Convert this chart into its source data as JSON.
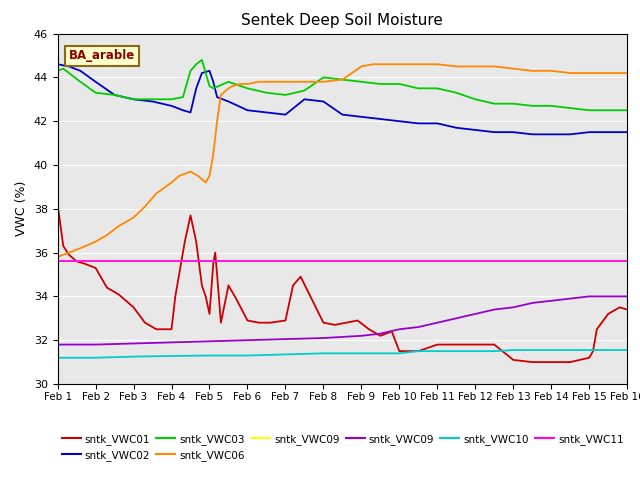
{
  "title": "Sentek Deep Soil Moisture",
  "ylabel": "VWC (%)",
  "annotation": "BA_arable",
  "xlim": [
    0,
    15
  ],
  "ylim": [
    30,
    46
  ],
  "yticks": [
    30,
    32,
    34,
    36,
    38,
    40,
    42,
    44,
    46
  ],
  "xtick_labels": [
    "Feb 1",
    "Feb 2",
    "Feb 3",
    "Feb 4",
    "Feb 5",
    "Feb 6",
    "Feb 7",
    "Feb 8",
    "Feb 9",
    "Feb 10",
    "Feb 11",
    "Feb 12",
    "Feb 13",
    "Feb 14",
    "Feb 15",
    "Feb 16"
  ],
  "bg_color": "#e8e8e8",
  "series": {
    "sntk_VWC01": {
      "color": "#cc0000",
      "label": "sntk_VWC01",
      "x": [
        0,
        0.15,
        0.3,
        0.5,
        0.7,
        1.0,
        1.3,
        1.6,
        2.0,
        2.3,
        2.6,
        3.0,
        3.1,
        3.2,
        3.35,
        3.5,
        3.65,
        3.8,
        3.9,
        4.0,
        4.1,
        4.15,
        4.2,
        4.3,
        4.5,
        4.7,
        5.0,
        5.3,
        5.6,
        6.0,
        6.2,
        6.4,
        6.6,
        6.8,
        7.0,
        7.3,
        7.6,
        7.9,
        8.2,
        8.5,
        8.8,
        9.0,
        9.5,
        10.0,
        10.5,
        11.0,
        11.5,
        12.0,
        12.5,
        13.0,
        13.5,
        14.0,
        14.1,
        14.2,
        14.5,
        14.8,
        15.0
      ],
      "y": [
        38.2,
        36.3,
        35.9,
        35.6,
        35.5,
        35.3,
        34.4,
        34.1,
        33.5,
        32.8,
        32.5,
        32.5,
        34.0,
        35.0,
        36.5,
        37.7,
        36.5,
        34.5,
        34.0,
        33.2,
        35.5,
        36.0,
        35.0,
        32.8,
        34.5,
        33.9,
        32.9,
        32.8,
        32.8,
        32.9,
        34.5,
        34.9,
        34.2,
        33.5,
        32.8,
        32.7,
        32.8,
        32.9,
        32.5,
        32.2,
        32.4,
        31.5,
        31.5,
        31.8,
        31.8,
        31.8,
        31.8,
        31.1,
        31.0,
        31.0,
        31.0,
        31.2,
        31.5,
        32.5,
        33.2,
        33.5,
        33.4
      ]
    },
    "sntk_VWC02": {
      "color": "#0000cc",
      "label": "sntk_VWC02",
      "x": [
        0,
        0.3,
        0.6,
        1.0,
        1.5,
        2.0,
        2.5,
        3.0,
        3.3,
        3.5,
        3.65,
        3.8,
        4.0,
        4.1,
        4.2,
        4.5,
        5.0,
        5.5,
        6.0,
        6.5,
        7.0,
        7.5,
        8.0,
        8.5,
        9.0,
        9.5,
        10.0,
        10.5,
        11.0,
        11.5,
        12.0,
        12.5,
        13.0,
        13.5,
        14.0,
        14.5,
        15.0
      ],
      "y": [
        44.6,
        44.5,
        44.3,
        43.8,
        43.2,
        43.0,
        42.9,
        42.7,
        42.5,
        42.4,
        43.5,
        44.2,
        44.3,
        43.8,
        43.1,
        42.9,
        42.5,
        42.4,
        42.3,
        43.0,
        42.9,
        42.3,
        42.2,
        42.1,
        42.0,
        41.9,
        41.9,
        41.7,
        41.6,
        41.5,
        41.5,
        41.4,
        41.4,
        41.4,
        41.5,
        41.5,
        41.5
      ]
    },
    "sntk_VWC03": {
      "color": "#00cc00",
      "label": "sntk_VWC03",
      "x": [
        0,
        0.15,
        0.3,
        0.6,
        1.0,
        1.5,
        2.0,
        2.5,
        3.0,
        3.3,
        3.5,
        3.65,
        3.8,
        4.0,
        4.1,
        4.5,
        5.0,
        5.5,
        6.0,
        6.5,
        7.0,
        7.5,
        8.0,
        8.5,
        9.0,
        9.5,
        10.0,
        10.5,
        11.0,
        11.5,
        12.0,
        12.5,
        13.0,
        13.5,
        14.0,
        14.5,
        15.0
      ],
      "y": [
        44.3,
        44.4,
        44.2,
        43.8,
        43.3,
        43.2,
        43.0,
        43.0,
        43.0,
        43.1,
        44.3,
        44.6,
        44.8,
        43.6,
        43.5,
        43.8,
        43.5,
        43.3,
        43.2,
        43.4,
        44.0,
        43.9,
        43.8,
        43.7,
        43.7,
        43.5,
        43.5,
        43.3,
        43.0,
        42.8,
        42.8,
        42.7,
        42.7,
        42.6,
        42.5,
        42.5,
        42.5
      ]
    },
    "sntk_VWC06": {
      "color": "#ff8800",
      "label": "sntk_VWC06",
      "x": [
        0,
        0.3,
        0.6,
        1.0,
        1.3,
        1.6,
        2.0,
        2.3,
        2.6,
        3.0,
        3.2,
        3.5,
        3.7,
        3.9,
        4.0,
        4.1,
        4.2,
        4.3,
        4.5,
        4.6,
        4.8,
        5.0,
        5.3,
        5.5,
        6.0,
        6.5,
        7.0,
        7.5,
        8.0,
        8.3,
        8.6,
        9.0,
        9.5,
        10.0,
        10.5,
        11.0,
        11.5,
        12.0,
        12.5,
        13.0,
        13.5,
        14.0,
        14.5,
        15.0
      ],
      "y": [
        35.8,
        36.0,
        36.2,
        36.5,
        36.8,
        37.2,
        37.6,
        38.1,
        38.7,
        39.2,
        39.5,
        39.7,
        39.5,
        39.2,
        39.5,
        40.5,
        42.0,
        43.2,
        43.5,
        43.6,
        43.7,
        43.7,
        43.8,
        43.8,
        43.8,
        43.8,
        43.8,
        43.9,
        44.5,
        44.6,
        44.6,
        44.6,
        44.6,
        44.6,
        44.5,
        44.5,
        44.5,
        44.4,
        44.3,
        44.3,
        44.2,
        44.2,
        44.2,
        44.2
      ]
    },
    "sntk_VWC09_yellow": {
      "color": "#ffff00",
      "label": "sntk_VWC09",
      "x": [
        0,
        15
      ],
      "y": [
        35.6,
        35.6
      ]
    },
    "sntk_VWC09_purple": {
      "color": "#9900cc",
      "label": "sntk_VWC09",
      "x": [
        0,
        1,
        2,
        3,
        4,
        5,
        6,
        7,
        8,
        8.5,
        9,
        9.5,
        10,
        10.5,
        11,
        11.5,
        12,
        12.5,
        13,
        13.5,
        14,
        14.5,
        15
      ],
      "y": [
        31.8,
        31.8,
        31.85,
        31.9,
        31.95,
        32.0,
        32.05,
        32.1,
        32.2,
        32.3,
        32.5,
        32.6,
        32.8,
        33.0,
        33.2,
        33.4,
        33.5,
        33.7,
        33.8,
        33.9,
        34.0,
        34.0,
        34.0
      ]
    },
    "sntk_VWC10": {
      "color": "#00cccc",
      "label": "sntk_VWC10",
      "x": [
        0,
        1,
        2,
        3,
        4,
        5,
        6,
        7,
        8,
        9,
        9.5,
        10,
        10.5,
        11,
        11.5,
        12,
        12.5,
        13,
        13.5,
        14,
        14.5,
        15
      ],
      "y": [
        31.2,
        31.2,
        31.25,
        31.28,
        31.3,
        31.3,
        31.35,
        31.4,
        31.4,
        31.4,
        31.5,
        31.5,
        31.5,
        31.5,
        31.5,
        31.55,
        31.55,
        31.55,
        31.55,
        31.55,
        31.55,
        31.55
      ]
    },
    "sntk_VWC11": {
      "color": "#ff00ff",
      "label": "sntk_VWC11",
      "x": [
        0,
        1,
        2,
        3,
        4,
        5,
        6,
        7,
        8,
        9,
        10,
        11,
        12,
        13,
        14,
        15
      ],
      "y": [
        35.6,
        35.6,
        35.6,
        35.6,
        35.6,
        35.6,
        35.6,
        35.6,
        35.6,
        35.6,
        35.6,
        35.6,
        35.6,
        35.6,
        35.6,
        35.6
      ]
    }
  }
}
